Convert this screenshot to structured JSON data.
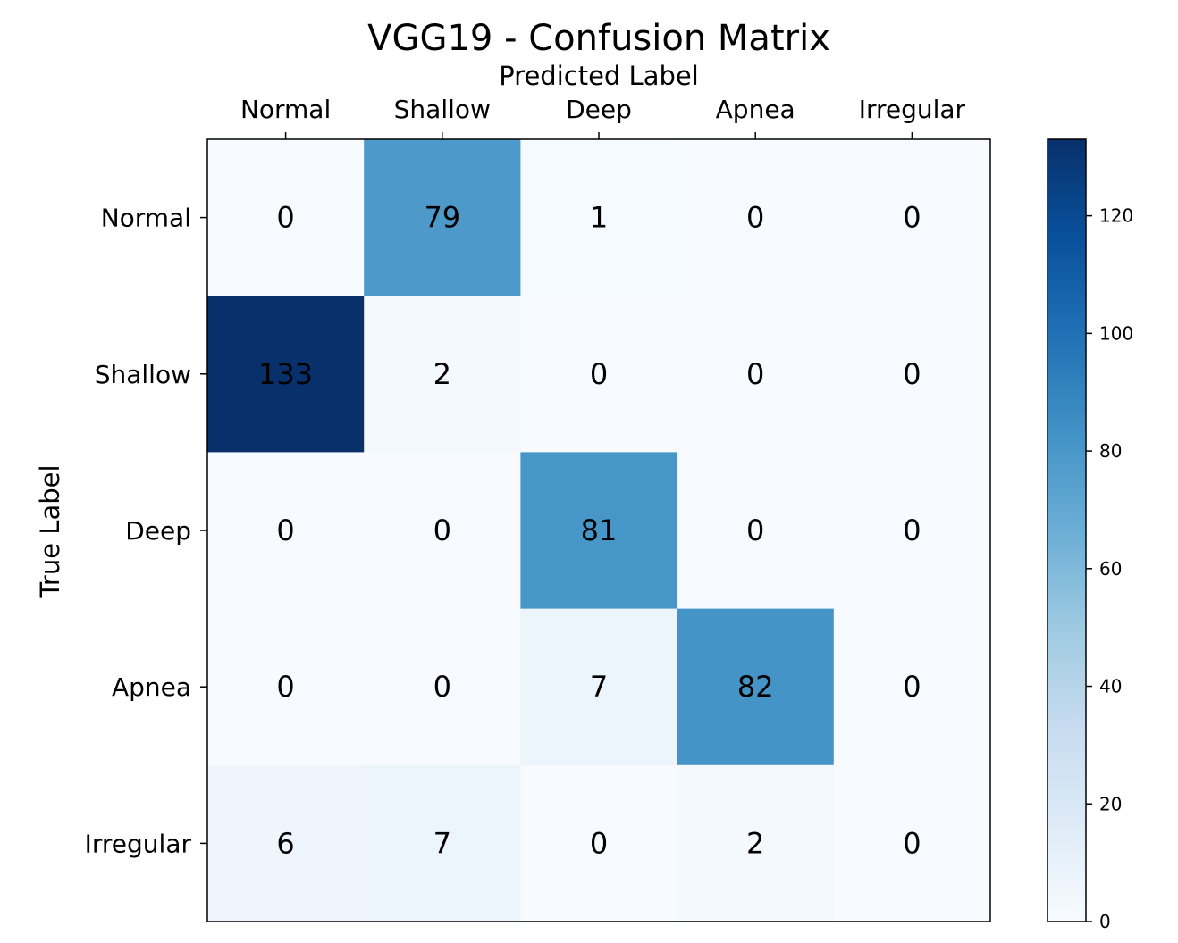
{
  "chart_data": {
    "type": "heatmap",
    "title": "VGG19 - Confusion Matrix",
    "xlabel": "Predicted Label",
    "ylabel": "True Label",
    "x_categories": [
      "Normal",
      "Shallow",
      "Deep",
      "Apnea",
      "Irregular"
    ],
    "y_categories": [
      "Normal",
      "Shallow",
      "Deep",
      "Apnea",
      "Irregular"
    ],
    "values": [
      [
        0,
        79,
        1,
        0,
        0
      ],
      [
        133,
        2,
        0,
        0,
        0
      ],
      [
        0,
        0,
        81,
        0,
        0
      ],
      [
        0,
        0,
        7,
        82,
        0
      ],
      [
        6,
        7,
        0,
        2,
        0
      ]
    ],
    "colormap": "Blues",
    "value_range": [
      0,
      133
    ],
    "colorbar_ticks": [
      0,
      20,
      40,
      60,
      80,
      100,
      120
    ],
    "x_axis_position": "top",
    "grid": false
  }
}
